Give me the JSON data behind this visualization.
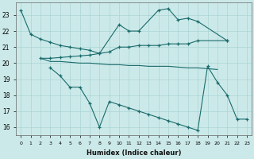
{
  "xlabel": "Humidex (Indice chaleur)",
  "bg_color": "#cce9e9",
  "grid_color": "#aad4d4",
  "line_color": "#1a6b6b",
  "ylim": [
    15.5,
    23.8
  ],
  "yticks": [
    16,
    17,
    18,
    19,
    20,
    21,
    22,
    23
  ],
  "xlim": [
    -0.5,
    23.5
  ],
  "xticks": [
    0,
    1,
    2,
    3,
    4,
    5,
    6,
    7,
    8,
    9,
    10,
    11,
    12,
    13,
    14,
    15,
    16,
    17,
    18,
    19,
    20,
    21,
    22,
    23
  ],
  "series": [
    {
      "x": [
        0,
        1,
        2,
        3,
        4,
        5,
        6,
        7,
        8,
        10,
        11,
        12,
        14,
        15,
        16,
        17,
        18,
        21
      ],
      "y": [
        23.3,
        21.8,
        21.5,
        21.3,
        21.1,
        21.0,
        20.9,
        20.8,
        20.6,
        22.4,
        22.0,
        22.0,
        23.3,
        23.4,
        22.7,
        22.8,
        22.6,
        21.4
      ],
      "markers": true
    },
    {
      "x": [
        2,
        3,
        4,
        5,
        6,
        7,
        8,
        9,
        10,
        11,
        12,
        13,
        14,
        15,
        16,
        17,
        18,
        21
      ],
      "y": [
        20.3,
        20.3,
        20.35,
        20.4,
        20.45,
        20.5,
        20.6,
        20.7,
        21.0,
        21.0,
        21.1,
        21.1,
        21.1,
        21.2,
        21.2,
        21.2,
        21.4,
        21.4
      ],
      "markers": true
    },
    {
      "x": [
        2,
        3,
        4,
        5,
        6,
        7,
        8,
        9,
        10,
        11,
        12,
        13,
        14,
        15,
        16,
        17,
        18,
        19,
        20
      ],
      "y": [
        20.3,
        20.1,
        20.1,
        20.05,
        20.0,
        20.0,
        19.95,
        19.9,
        19.9,
        19.85,
        19.85,
        19.8,
        19.8,
        19.8,
        19.75,
        19.7,
        19.7,
        19.65,
        19.6
      ],
      "markers": false
    },
    {
      "x": [
        3,
        4,
        5,
        6,
        7,
        8,
        9,
        10,
        11,
        12,
        13,
        14,
        15,
        16,
        17,
        18,
        19,
        20,
        21,
        22,
        23
      ],
      "y": [
        19.7,
        19.2,
        18.5,
        18.5,
        17.5,
        16.0,
        17.6,
        17.4,
        17.2,
        17.0,
        16.8,
        16.6,
        16.4,
        16.2,
        16.0,
        15.8,
        19.8,
        18.8,
        18.0,
        16.5,
        16.5
      ],
      "markers": true
    }
  ]
}
